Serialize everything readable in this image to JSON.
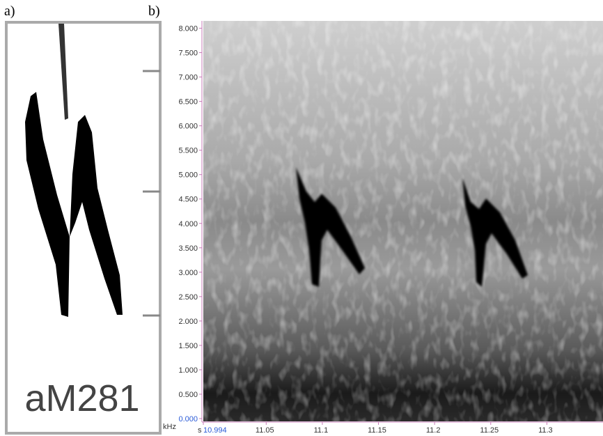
{
  "sketch": {
    "panel_label": "a)",
    "label": "aM281"
  },
  "chart_data": {
    "type": "spectrogram",
    "panel_label": "b)",
    "y_unit": "kHz",
    "x_unit": "s",
    "xlim": [
      10.994,
      11.35
    ],
    "xticks": [
      10.994,
      11.05,
      11.1,
      11.15,
      11.2,
      11.25,
      11.3
    ],
    "ylim": [
      0,
      8.15
    ],
    "yticks": [
      {
        "value": 0,
        "label": "0.000"
      },
      {
        "value": 0.5,
        "label": "0.500"
      },
      {
        "value": 1,
        "label": "1.000"
      },
      {
        "value": 1.5,
        "label": "1.500"
      },
      {
        "value": 2,
        "label": "2.000"
      },
      {
        "value": 2.5,
        "label": "2.500"
      },
      {
        "value": 3,
        "label": "3.000"
      },
      {
        "value": 3.5,
        "label": "3.500"
      },
      {
        "value": 4,
        "label": "4.000"
      },
      {
        "value": 4.5,
        "label": "4.500"
      },
      {
        "value": 5,
        "label": "5.000"
      },
      {
        "value": 5.5,
        "label": "5.500"
      },
      {
        "value": 6,
        "label": "6.000"
      },
      {
        "value": 6.5,
        "label": "6.500"
      },
      {
        "value": 7,
        "label": "7.000"
      },
      {
        "value": 7.5,
        "label": "7.500"
      },
      {
        "value": 8,
        "label": "8.000"
      }
    ]
  }
}
